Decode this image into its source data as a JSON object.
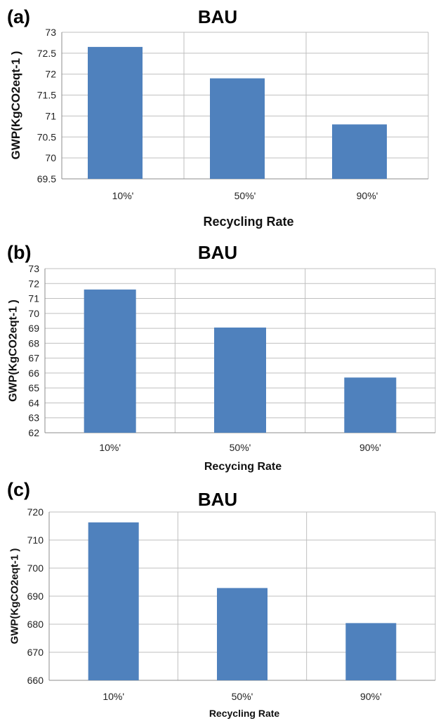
{
  "chart_data": [
    {
      "panel": "(a)",
      "type": "bar",
      "title": "BAU",
      "xlabel": "Recycling Rate",
      "ylabel": "GWP(KgCO2eqt-1  )",
      "categories": [
        "10%'",
        "50%'",
        "90%'"
      ],
      "values": [
        72.65,
        71.9,
        70.8
      ],
      "ylim": [
        69.5,
        73
      ],
      "yticks": [
        69.5,
        70,
        70.5,
        71,
        71.5,
        72,
        72.5,
        73
      ],
      "ytick_labels": [
        "69.5",
        "70",
        "70.5",
        "71",
        "71.5",
        "72",
        "72.5",
        "73"
      ],
      "grid": true,
      "legend": "none"
    },
    {
      "panel": "(b)",
      "type": "bar",
      "title": "BAU",
      "xlabel": "Recycing Rate",
      "ylabel": "GWP(KgCO2eqt-1  )",
      "categories": [
        "10%'",
        "50%'",
        "90%'"
      ],
      "values": [
        71.6,
        69.05,
        65.7
      ],
      "ylim": [
        62,
        73
      ],
      "yticks": [
        62,
        63,
        64,
        65,
        66,
        67,
        68,
        69,
        70,
        71,
        72,
        73
      ],
      "ytick_labels": [
        "62",
        "63",
        "64",
        "65",
        "66",
        "67",
        "68",
        "69",
        "70",
        "71",
        "72",
        "73"
      ],
      "grid": true,
      "legend": "none"
    },
    {
      "panel": "(c)",
      "type": "bar",
      "title": "BAU",
      "xlabel": "Recycling Rate",
      "ylabel": "GWP(KgCO2eqt-1  )",
      "categories": [
        "10%'",
        "50%'",
        "90%'"
      ],
      "values": [
        716.3,
        692.9,
        680.4
      ],
      "ylim": [
        660,
        720
      ],
      "yticks": [
        660,
        670,
        680,
        690,
        700,
        710,
        720
      ],
      "ytick_labels": [
        "660",
        "670",
        "680",
        "690",
        "700",
        "710",
        "720"
      ],
      "grid": true,
      "legend": "none"
    }
  ],
  "colors": {
    "bar": "#4f81bd",
    "grid": "#bfbfbf",
    "axis": "#8c8c8c"
  }
}
